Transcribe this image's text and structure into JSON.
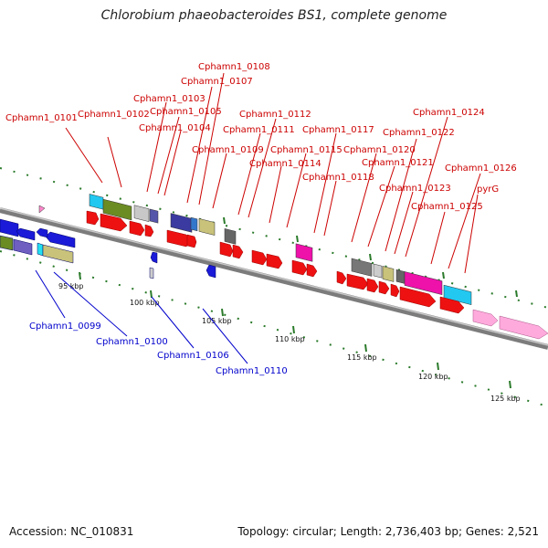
{
  "title": "Chlorobium phaeobacteroides BS1, complete genome",
  "footer": {
    "accession": "Accession: NC_010831",
    "summary": "Topology: circular; Length: 2,736,403 bp; Genes: 2,521"
  },
  "colors": {
    "forward_label": "#cc0000",
    "reverse_label": "#0000cc",
    "tick": "#2a7a2a",
    "backbone": "#8a8a8a"
  },
  "ticks": [
    "95 kbp",
    "100 kbp",
    "105 kbp",
    "110 kbp",
    "115 kbp",
    "120 kbp",
    "125 kbp"
  ],
  "forward_labels": [
    "Cphamn1_0101",
    "Cphamn1_0102",
    "Cphamn1_0103",
    "Cphamn1_0104",
    "Cphamn1_0105",
    "Cphamn1_0107",
    "Cphamn1_0108",
    "Cphamn1_0109",
    "Cphamn1_0111",
    "Cphamn1_0112",
    "Cphamn1_0114",
    "Cphamn1_0115",
    "Cphamn1_0117",
    "Cphamn1_0118",
    "Cphamn1_0120",
    "Cphamn1_0121",
    "Cphamn1_0122",
    "Cphamn1_0123",
    "Cphamn1_0124",
    "Cphamn1_0125",
    "Cphamn1_0126",
    "pyrG"
  ],
  "reverse_labels": [
    "Cphamn1_0099",
    "Cphamn1_0100",
    "Cphamn1_0106",
    "Cphamn1_0110"
  ]
}
